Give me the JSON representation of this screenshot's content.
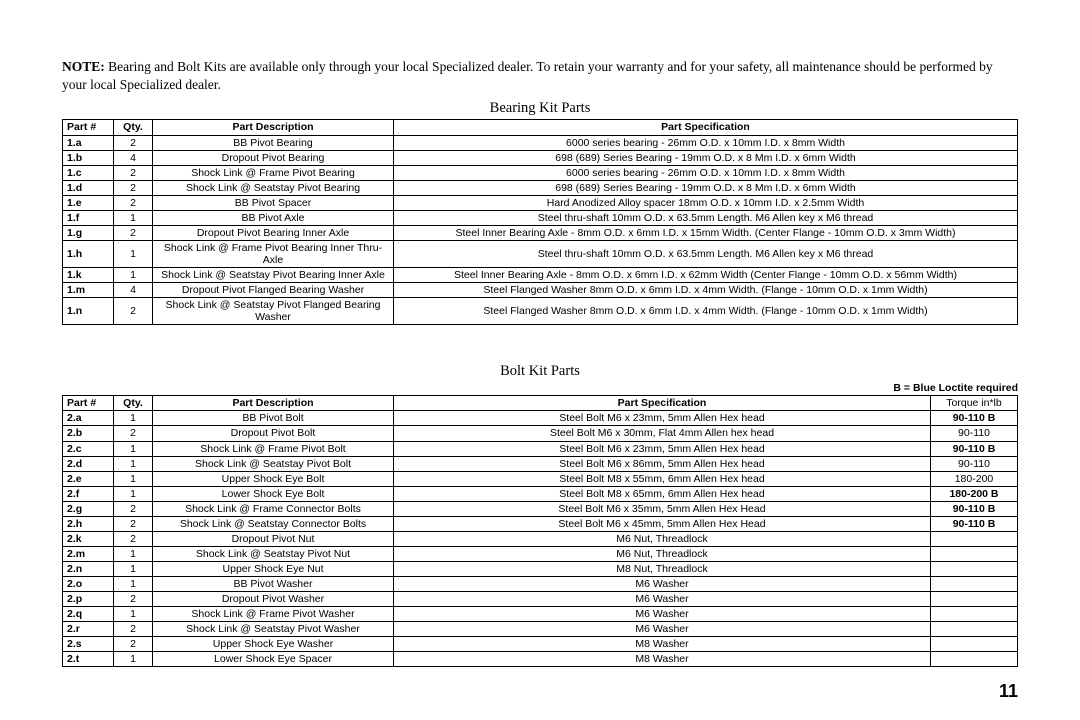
{
  "note_label": "NOTE:",
  "note_text": " Bearing and Bolt Kits are available only through your local Specialized dealer. To retain your warranty and for your safety, all maintenance should be performed by your local Specialized dealer.",
  "bearing_title": "Bearing Kit Parts",
  "bolt_title": "Bolt Kit Parts",
  "legend": "B = Blue Loctite required",
  "page_number": "11",
  "bearing_headers": {
    "part": "Part #",
    "qty": "Qty.",
    "desc": "Part Description",
    "spec": "Part Specification"
  },
  "bolt_headers": {
    "part": "Part #",
    "qty": "Qty.",
    "desc": "Part Description",
    "spec": "Part Specification",
    "torque": "Torque in*lb"
  },
  "bearing_rows": [
    {
      "p": "1.a",
      "q": "2",
      "d": "BB Pivot Bearing",
      "s": "6000 series bearing - 26mm O.D. x 10mm I.D. x 8mm Width"
    },
    {
      "p": "1.b",
      "q": "4",
      "d": "Dropout Pivot Bearing",
      "s": "698 (689) Series Bearing - 19mm O.D. x 8 Mm I.D. x 6mm Width"
    },
    {
      "p": "1.c",
      "q": "2",
      "d": "Shock Link @ Frame Pivot Bearing",
      "s": "6000 series bearing - 26mm O.D. x 10mm I.D. x 8mm Width"
    },
    {
      "p": "1.d",
      "q": "2",
      "d": "Shock Link @ Seatstay Pivot Bearing",
      "s": "698 (689) Series Bearing - 19mm O.D. x 8 Mm I.D. x 6mm Width"
    },
    {
      "p": "1.e",
      "q": "2",
      "d": "BB Pivot Spacer",
      "s": "Hard Anodized Alloy spacer 18mm O.D. x 10mm I.D. x 2.5mm Width"
    },
    {
      "p": "1.f",
      "q": "1",
      "d": "BB Pivot Axle",
      "s": "Steel thru-shaft 10mm O.D. x 63.5mm Length. M6 Allen key x M6 thread"
    },
    {
      "p": "1.g",
      "q": "2",
      "d": "Dropout Pivot Bearing Inner Axle",
      "s": "Steel Inner Bearing Axle - 8mm O.D. x 6mm I.D. x 15mm Width. (Center Flange - 10mm O.D. x 3mm Width)"
    },
    {
      "p": "1.h",
      "q": "1",
      "d": "Shock Link @ Frame Pivot Bearing Inner Thru-Axle",
      "s": "Steel thru-shaft 10mm O.D. x 63.5mm Length. M6 Allen key x M6 thread"
    },
    {
      "p": "1.k",
      "q": "1",
      "d": "Shock Link @ Seatstay Pivot Bearing Inner Axle",
      "s": "Steel Inner Bearing Axle - 8mm O.D. x 6mm I.D. x 62mm Width (Center Flange - 10mm O.D. x 56mm Width)"
    },
    {
      "p": "1.m",
      "q": "4",
      "d": "Dropout Pivot Flanged Bearing Washer",
      "s": "Steel Flanged Washer 8mm O.D. x 6mm I.D. x 4mm Width. (Flange - 10mm O.D. x 1mm Width)"
    },
    {
      "p": "1.n",
      "q": "2",
      "d": "Shock Link @ Seatstay Pivot Flanged Bearing Washer",
      "s": "Steel Flanged Washer 8mm O.D. x 6mm I.D. x 4mm Width. (Flange - 10mm O.D. x 1mm Width)"
    }
  ],
  "bolt_rows": [
    {
      "p": "2.a",
      "q": "1",
      "d": "BB Pivot Bolt",
      "s": "Steel Bolt M6 x 23mm, 5mm Allen Hex head",
      "t": "90-110 B",
      "tb": true
    },
    {
      "p": "2.b",
      "q": "2",
      "d": "Dropout Pivot Bolt",
      "s": "Steel Bolt M6 x 30mm, Flat 4mm Allen hex head",
      "t": "90-110",
      "tb": false
    },
    {
      "p": "2.c",
      "q": "1",
      "d": "Shock Link @ Frame Pivot Bolt",
      "s": "Steel Bolt M6 x 23mm, 5mm Allen Hex head",
      "t": "90-110 B",
      "tb": true
    },
    {
      "p": "2.d",
      "q": "1",
      "d": "Shock Link @ Seatstay Pivot Bolt",
      "s": "Steel Bolt M6 x 86mm, 5mm Allen Hex head",
      "t": "90-110",
      "tb": false
    },
    {
      "p": "2.e",
      "q": "1",
      "d": "Upper Shock Eye Bolt",
      "s": "Steel Bolt M8 x 55mm, 6mm Allen Hex head",
      "t": "180-200",
      "tb": false
    },
    {
      "p": "2.f",
      "q": "1",
      "d": "Lower Shock Eye Bolt",
      "s": "Steel Bolt M8 x 65mm, 6mm Allen Hex head",
      "t": "180-200 B",
      "tb": true
    },
    {
      "p": "2.g",
      "q": "2",
      "d": "Shock Link @ Frame Connector Bolts",
      "s": "Steel Bolt M6 x 35mm, 5mm Allen Hex Head",
      "t": "90-110 B",
      "tb": true
    },
    {
      "p": "2.h",
      "q": "2",
      "d": "Shock Link @ Seatstay Connector Bolts",
      "s": "Steel Bolt M6 x 45mm, 5mm Allen Hex Head",
      "t": "90-110 B",
      "tb": true
    },
    {
      "p": "2.k",
      "q": "2",
      "d": "Dropout Pivot Nut",
      "s": "M6 Nut, Threadlock",
      "t": "",
      "tb": false
    },
    {
      "p": "2.m",
      "q": "1",
      "d": "Shock Link @ Seatstay Pivot Nut",
      "s": "M6 Nut, Threadlock",
      "t": "",
      "tb": false
    },
    {
      "p": "2.n",
      "q": "1",
      "d": "Upper Shock Eye Nut",
      "s": "M8 Nut, Threadlock",
      "t": "",
      "tb": false
    },
    {
      "p": "2.o",
      "q": "1",
      "d": "BB Pivot Washer",
      "s": "M6 Washer",
      "t": "",
      "tb": false
    },
    {
      "p": "2.p",
      "q": "2",
      "d": "Dropout Pivot Washer",
      "s": "M6 Washer",
      "t": "",
      "tb": false
    },
    {
      "p": "2.q",
      "q": "1",
      "d": "Shock Link @ Frame Pivot Washer",
      "s": "M6 Washer",
      "t": "",
      "tb": false
    },
    {
      "p": "2.r",
      "q": "2",
      "d": "Shock Link @ Seatstay Pivot Washer",
      "s": "M6 Washer",
      "t": "",
      "tb": false
    },
    {
      "p": "2.s",
      "q": "2",
      "d": "Upper Shock Eye Washer",
      "s": "M8 Washer",
      "t": "",
      "tb": false
    },
    {
      "p": "2.t",
      "q": "1",
      "d": "Lower Shock Eye Spacer",
      "s": "M8 Washer",
      "t": "",
      "tb": false
    }
  ]
}
